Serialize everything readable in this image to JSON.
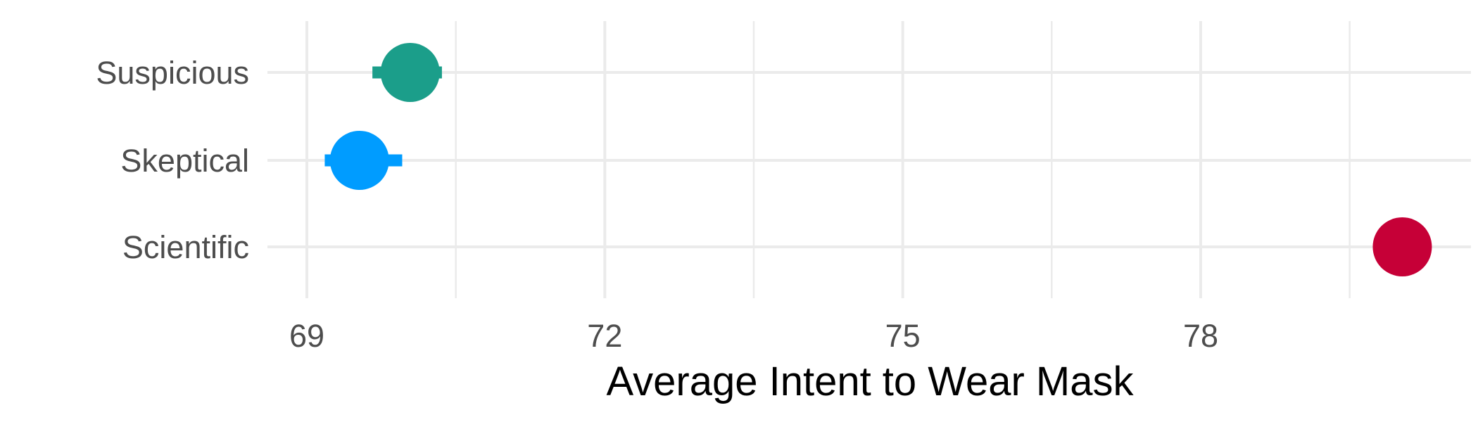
{
  "chart_data": {
    "type": "scatter",
    "title": "",
    "xlabel": "Average Intent to Wear Mask",
    "ylabel": "",
    "xlim": [
      68.8,
      80.6
    ],
    "x_ticks": [
      "69",
      "72",
      "75",
      "78"
    ],
    "x_tick_values": [
      69,
      72,
      75,
      78
    ],
    "categories": [
      "Scientific",
      "Skeptical",
      "Suspicious"
    ],
    "grid": true,
    "series": [
      {
        "category": "Suspicious",
        "value": 70.04,
        "ci_low": 69.66,
        "ci_high": 70.36,
        "color": "#1b9e8a"
      },
      {
        "category": "Skeptical",
        "value": 69.53,
        "ci_low": 69.18,
        "ci_high": 69.96,
        "color": "#009cff"
      },
      {
        "category": "Scientific",
        "value": 80.03,
        "ci_low": 80.03,
        "ci_high": 80.03,
        "color": "#c60037"
      }
    ]
  }
}
